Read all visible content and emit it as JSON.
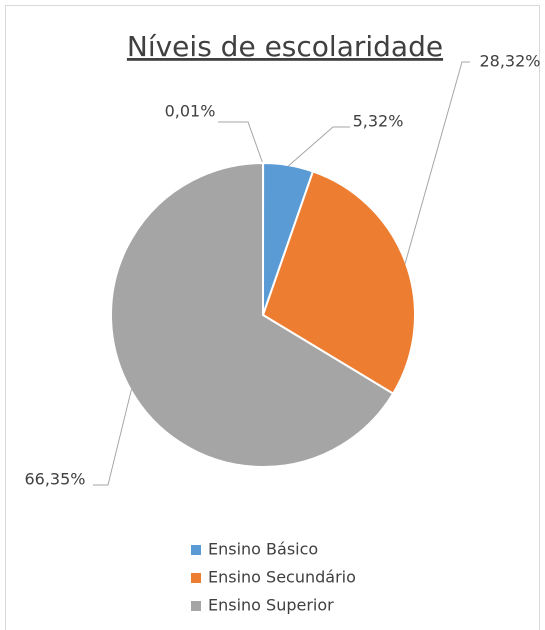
{
  "chart_data": {
    "type": "pie",
    "title": "Níveis de escolaridade",
    "categories": [
      null,
      "Ensino Básico",
      "Ensino Secundário",
      "Ensino Superior"
    ],
    "values": [
      0.01,
      5.32,
      28.32,
      66.35
    ],
    "value_labels": [
      "0,01%",
      "5,32%",
      "28,32%",
      "66,35%"
    ],
    "colors": [
      "#ffc000",
      "#5b9bd5",
      "#ed7d31",
      "#a5a5a5"
    ],
    "legend": "bottom"
  }
}
